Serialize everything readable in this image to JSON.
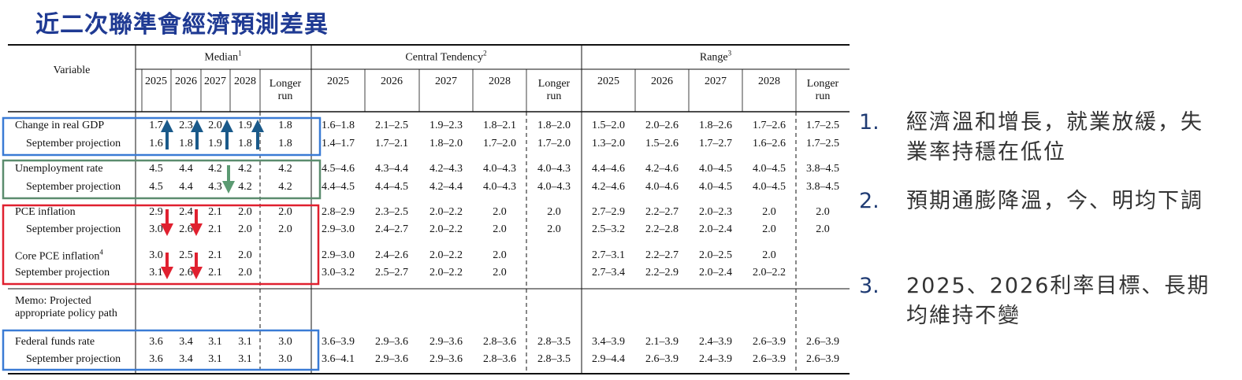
{
  "title": "近二次聯準會經濟預測差異",
  "table": {
    "variable_header": "Variable",
    "groups": [
      {
        "name": "Median",
        "note": "1"
      },
      {
        "name": "Central Tendency",
        "note": "2"
      },
      {
        "name": "Range",
        "note": "3"
      }
    ],
    "columns": [
      "2025",
      "2026",
      "2027",
      "2028",
      "Longer run"
    ],
    "rows": [
      {
        "label": "Change in real GDP",
        "values": [
          "1.7",
          "2.3",
          "2.0",
          "1.9",
          "1.8",
          "1.6–1.8",
          "2.1–2.5",
          "1.9–2.3",
          "1.8–2.1",
          "1.8–2.0",
          "1.5–2.0",
          "2.0–2.6",
          "1.8–2.6",
          "1.7–2.6",
          "1.7–2.5"
        ]
      },
      {
        "label": "September projection",
        "values": [
          "1.6",
          "1.8",
          "1.9",
          "1.8",
          "1.8",
          "1.4–1.7",
          "1.7–2.1",
          "1.8–2.0",
          "1.7–2.0",
          "1.7–2.0",
          "1.3–2.0",
          "1.5–2.6",
          "1.7–2.7",
          "1.6–2.6",
          "1.7–2.5"
        ]
      },
      {
        "label": "Unemployment rate",
        "values": [
          "4.5",
          "4.4",
          "4.2",
          "4.2",
          "4.2",
          "4.5–4.6",
          "4.3–4.4",
          "4.2–4.3",
          "4.0–4.3",
          "4.0–4.3",
          "4.4–4.6",
          "4.2–4.6",
          "4.0–4.5",
          "4.0–4.5",
          "3.8–4.5"
        ]
      },
      {
        "label": "September projection",
        "values": [
          "4.5",
          "4.4",
          "4.3",
          "4.2",
          "4.2",
          "4.4–4.5",
          "4.4–4.5",
          "4.2–4.4",
          "4.0–4.3",
          "4.0–4.3",
          "4.2–4.6",
          "4.0–4.6",
          "4.0–4.5",
          "4.0–4.5",
          "3.8–4.5"
        ]
      },
      {
        "label": "PCE inflation",
        "values": [
          "2.9",
          "2.4",
          "2.1",
          "2.0",
          "2.0",
          "2.8–2.9",
          "2.3–2.5",
          "2.0–2.2",
          "2.0",
          "2.0",
          "2.7–2.9",
          "2.2–2.7",
          "2.0–2.3",
          "2.0",
          "2.0"
        ]
      },
      {
        "label": "September projection",
        "values": [
          "3.0",
          "2.6",
          "2.1",
          "2.0",
          "2.0",
          "2.9–3.0",
          "2.4–2.7",
          "2.0–2.2",
          "2.0",
          "2.0",
          "2.5–3.2",
          "2.2–2.8",
          "2.0–2.4",
          "2.0",
          "2.0"
        ]
      },
      {
        "label": "Core PCE inflation",
        "label_note": "4",
        "values": [
          "3.0",
          "2.5",
          "2.1",
          "2.0",
          null,
          "2.9–3.0",
          "2.4–2.6",
          "2.0–2.2",
          "2.0",
          null,
          "2.7–3.1",
          "2.2–2.7",
          "2.0–2.5",
          "2.0",
          null
        ]
      },
      {
        "label": "September projection",
        "values": [
          "3.1",
          "2.6",
          "2.1",
          "2.0",
          null,
          "3.0–3.2",
          "2.5–2.7",
          "2.0–2.2",
          "2.0",
          null,
          "2.7–3.4",
          "2.2–2.9",
          "2.0–2.4",
          "2.0–2.2",
          null
        ]
      },
      {
        "label": "Memo: Projected appropriate policy path"
      },
      {
        "label": "Federal funds rate",
        "values": [
          "3.6",
          "3.4",
          "3.1",
          "3.1",
          "3.0",
          "3.6–3.9",
          "2.9–3.6",
          "2.9–3.6",
          "2.8–3.6",
          "2.8–3.5",
          "3.4–3.9",
          "2.1–3.9",
          "2.4–3.9",
          "2.6–3.9",
          "2.6–3.9"
        ]
      },
      {
        "label": "September projection",
        "values": [
          "3.6",
          "3.4",
          "3.1",
          "3.1",
          "3.0",
          "3.6–4.1",
          "2.9–3.6",
          "2.9–3.6",
          "2.8–3.6",
          "2.8–3.5",
          "2.9–4.4",
          "2.6–3.9",
          "2.4–3.9",
          "2.6–3.9",
          "2.6–3.9"
        ]
      }
    ]
  },
  "notes": [
    {
      "marker": "1.",
      "text": "經濟溫和增長，就業放緩，失業率持穩在低位"
    },
    {
      "marker": "2.",
      "text": "預期通膨降溫，今、明均下調"
    },
    {
      "marker": "3.",
      "text": "2025、2026利率目標、長期均維持不變"
    }
  ]
}
